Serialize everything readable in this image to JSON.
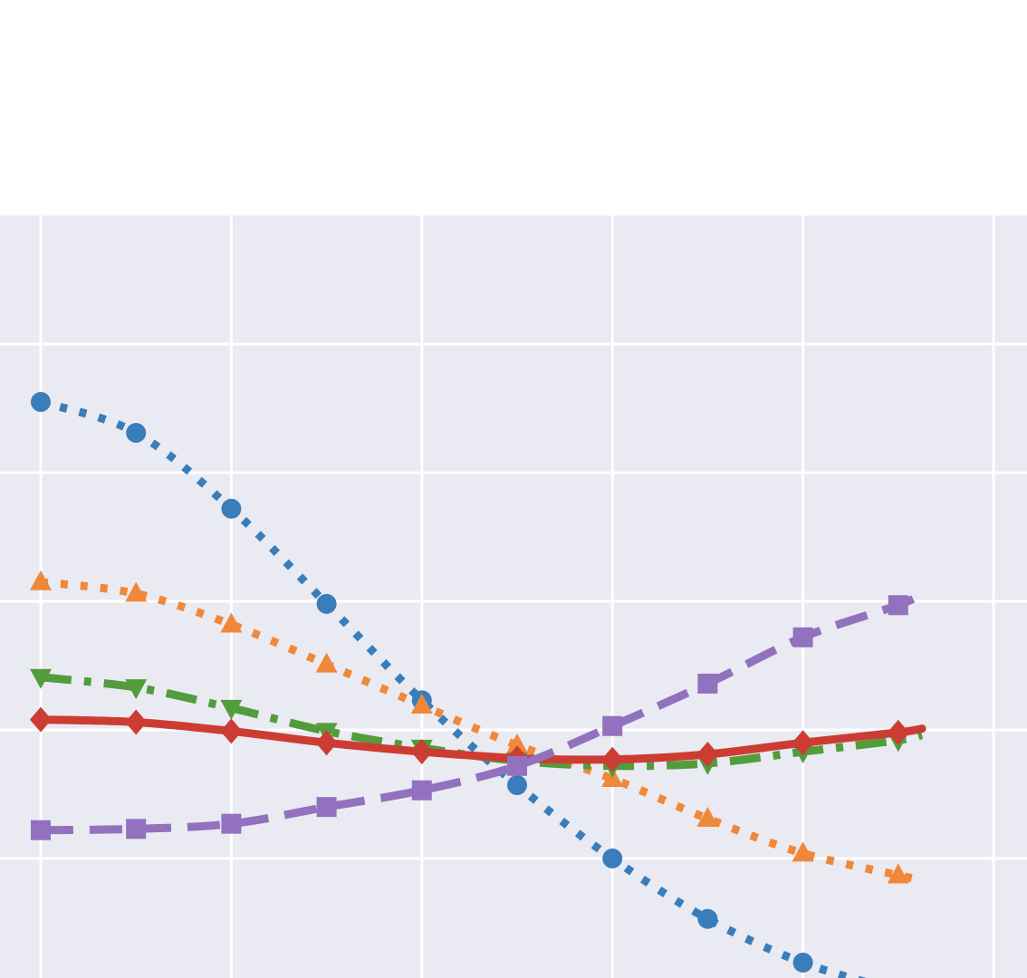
{
  "chart_data": {
    "type": "line",
    "x": [
      0,
      1,
      2,
      3,
      4,
      5,
      6,
      7,
      8,
      9
    ],
    "xlim": [
      -0.2,
      10.3
    ],
    "ylim": [
      -3.5,
      2.4
    ],
    "x_gridlines": [
      0,
      2,
      4,
      6,
      8,
      10
    ],
    "y_gridlines": [
      -3,
      -2,
      -1,
      0,
      1,
      2
    ],
    "grid": true,
    "background_color": "#eaeaf2",
    "grid_color": "#ffffff",
    "series": [
      {
        "color": "#3a7dbb",
        "line_style": "dotted",
        "marker": "circle",
        "values": [
          1.55,
          1.31,
          0.72,
          -0.02,
          -0.77,
          -1.43,
          -2.0,
          -2.47,
          -2.81,
          -3.03
        ]
      },
      {
        "color": "#f0883a",
        "line_style": "dotted",
        "marker": "triangle-up",
        "values": [
          0.15,
          0.06,
          -0.18,
          -0.49,
          -0.81,
          -1.12,
          -1.38,
          -1.69,
          -1.96,
          -2.13
        ]
      },
      {
        "color": "#529c3c",
        "line_style": "dashdot",
        "marker": "triangle-down",
        "values": [
          -0.59,
          -0.67,
          -0.83,
          -1.01,
          -1.14,
          -1.24,
          -1.28,
          -1.26,
          -1.17,
          -1.08
        ]
      },
      {
        "color": "#cd3c33",
        "line_style": "solid",
        "marker": "diamond",
        "values": [
          -0.92,
          -0.94,
          -1.01,
          -1.1,
          -1.17,
          -1.22,
          -1.23,
          -1.19,
          -1.1,
          -1.02
        ]
      },
      {
        "color": "#9271bf",
        "line_style": "dashed",
        "marker": "square",
        "values": [
          -1.78,
          -1.77,
          -1.73,
          -1.6,
          -1.47,
          -1.28,
          -0.97,
          -0.64,
          -0.28,
          -0.03
        ]
      }
    ],
    "x_end": 9.25,
    "series_end_values": [
      -3.09,
      -2.17,
      -1.04,
      -0.99,
      0.06
    ]
  }
}
